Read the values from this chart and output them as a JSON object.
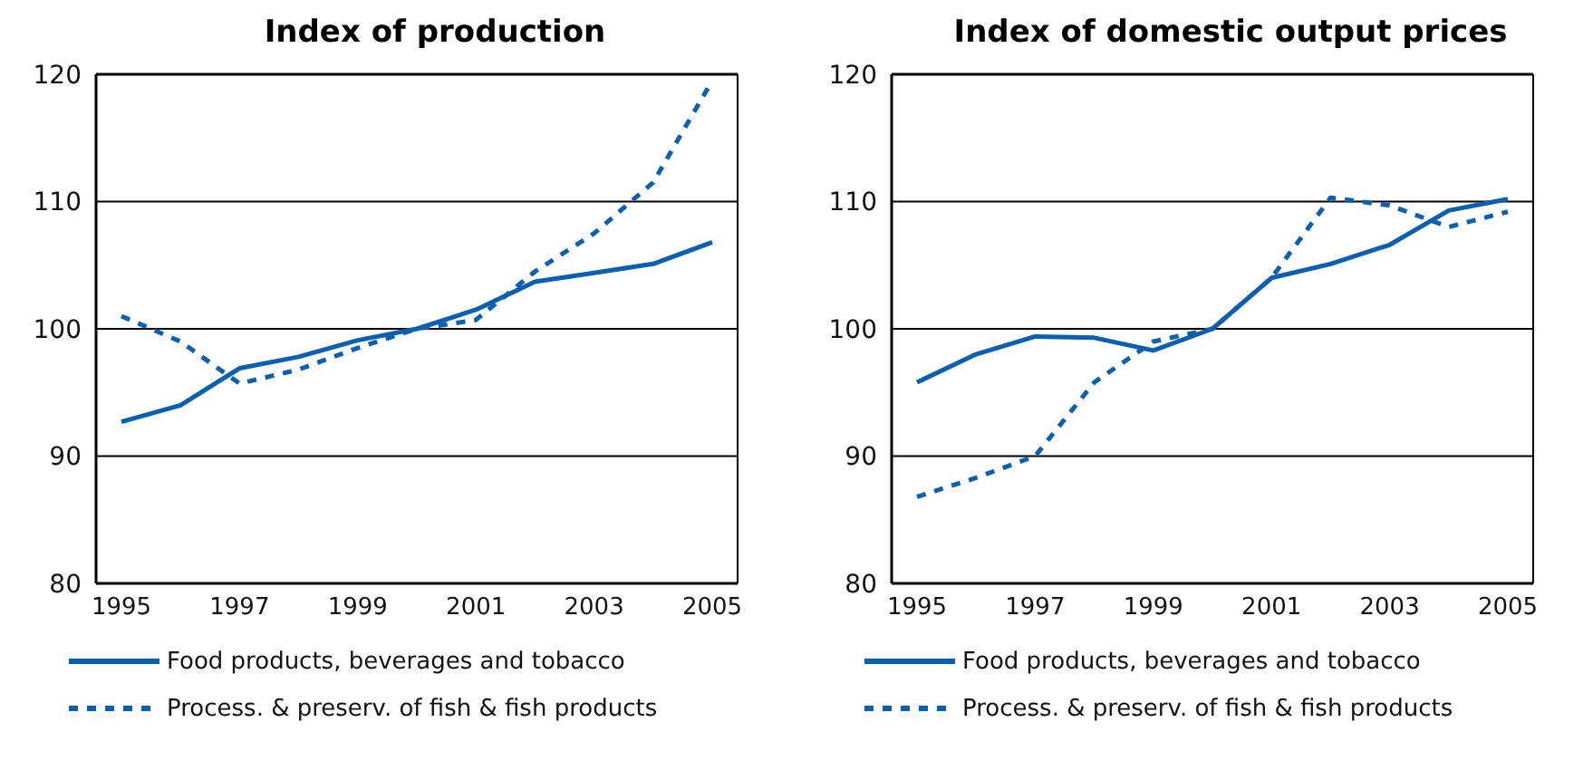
{
  "chart_data": [
    {
      "type": "line",
      "title": "Index of production",
      "categories": [
        "1995",
        null,
        "1997",
        null,
        "1999",
        null,
        "2001",
        null,
        "2003",
        null,
        "2005"
      ],
      "series": [
        {
          "name": "Food products, beverages and tobacco",
          "color": "#0a5fb0",
          "line_style": "solid",
          "values": [
            92.7,
            94.0,
            96.9,
            97.8,
            99.1,
            100,
            101.5,
            103.7,
            104.4,
            105.1,
            106.8
          ]
        },
        {
          "name": "Process. & preserv. of fish & fish products",
          "color": "#0a5fb0",
          "line_style": "dashed",
          "values": [
            101,
            99,
            95.7,
            96.8,
            98.5,
            100,
            100.7,
            104.5,
            107.5,
            111.5,
            119.5
          ]
        }
      ],
      "ylim": [
        80,
        120
      ],
      "yticks": [
        80,
        90,
        100,
        110,
        120
      ],
      "grid": "y",
      "legend": "bottom"
    },
    {
      "type": "line",
      "title": "Index of domestic output prices",
      "categories": [
        "1995",
        null,
        "1997",
        null,
        "1999",
        null,
        "2001",
        null,
        "2003",
        null,
        "2005"
      ],
      "series": [
        {
          "name": "Food products, beverages and tobacco",
          "color": "#0a5fb0",
          "line_style": "solid",
          "values": [
            95.8,
            98.0,
            99.4,
            99.3,
            98.3,
            100,
            104.0,
            105.1,
            106.6,
            109.3,
            110.2
          ]
        },
        {
          "name": "Process. & preserv. of fish & fish products",
          "color": "#0a5fb0",
          "line_style": "dashed",
          "values": [
            86.8,
            88.3,
            90.0,
            95.8,
            99.0,
            100,
            104.0,
            110.3,
            109.7,
            108.0,
            109.2
          ]
        }
      ],
      "ylim": [
        80,
        120
      ],
      "yticks": [
        80,
        90,
        100,
        110,
        120
      ],
      "grid": "y",
      "legend": "bottom"
    }
  ]
}
